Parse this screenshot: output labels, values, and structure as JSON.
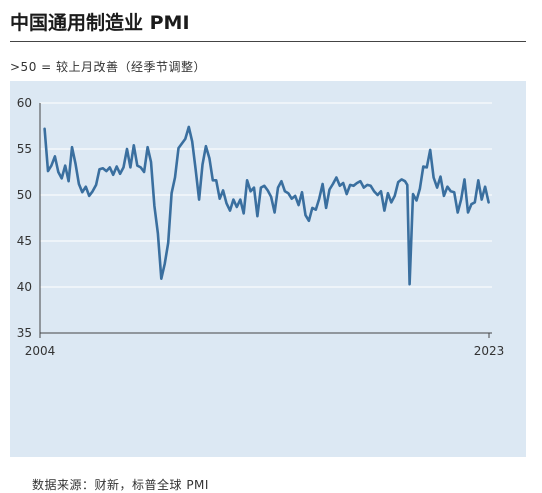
{
  "header": {
    "title": "中国通用制造业 PMI",
    "subtitle": ">50 = 较上月改善（经季节调整）"
  },
  "footer": {
    "source": "数据来源：财新，标普全球 PMI"
  },
  "colors": {
    "panel_bg": "#dce8f3",
    "line": "#3a6f9f",
    "grid": "#ffffff",
    "text": "#333333"
  },
  "chart_data": {
    "type": "line",
    "title": "中国通用制造业 PMI",
    "subtitle": ">50 = 较上月改善（经季节调整）",
    "xlabel": "",
    "ylabel": "",
    "ylim": [
      35,
      60
    ],
    "yticks": [
      35,
      40,
      45,
      50,
      55,
      60
    ],
    "xlim": [
      2004.0,
      2023.75
    ],
    "xtick_labels": [
      "2004",
      "2023"
    ],
    "grid": true,
    "legend": "none",
    "series": [
      {
        "x": [
          2004.2,
          2004.35,
          2004.5,
          2004.65,
          2004.8,
          2004.95,
          2005.1,
          2005.25,
          2005.4,
          2005.55,
          2005.7,
          2005.85,
          2006.0,
          2006.15,
          2006.3,
          2006.45,
          2006.6,
          2006.75,
          2006.9,
          2007.05,
          2007.2,
          2007.35,
          2007.5,
          2007.65,
          2007.8,
          2007.95,
          2008.1,
          2008.25,
          2008.4,
          2008.55,
          2008.7,
          2008.85,
          2009.0,
          2009.15,
          2009.3,
          2009.45,
          2009.6,
          2009.75,
          2009.9,
          2010.05,
          2010.2,
          2010.35,
          2010.5,
          2010.65,
          2010.8,
          2010.95,
          2011.1,
          2011.25,
          2011.4,
          2011.55,
          2011.7,
          2011.85,
          2012.0,
          2012.15,
          2012.3,
          2012.45,
          2012.6,
          2012.75,
          2012.9,
          2013.05,
          2013.2,
          2013.35,
          2013.5,
          2013.65,
          2013.8,
          2013.95,
          2014.1,
          2014.25,
          2014.4,
          2014.55,
          2014.7,
          2014.85,
          2015.0,
          2015.15,
          2015.3,
          2015.45,
          2015.6,
          2015.75,
          2015.9,
          2016.05,
          2016.2,
          2016.35,
          2016.5,
          2016.65,
          2016.8,
          2016.95,
          2017.1,
          2017.25,
          2017.4,
          2017.55,
          2017.7,
          2017.85,
          2018.0,
          2018.15,
          2018.3,
          2018.45,
          2018.6,
          2018.75,
          2018.9,
          2019.05,
          2019.2,
          2019.35,
          2019.5,
          2019.65,
          2019.8,
          2019.95,
          2020.05,
          2020.15,
          2020.3,
          2020.45,
          2020.6,
          2020.75,
          2020.9,
          2021.05,
          2021.2,
          2021.35,
          2021.5,
          2021.65,
          2021.8,
          2021.95,
          2022.1,
          2022.25,
          2022.4,
          2022.55,
          2022.7,
          2022.85,
          2023.0,
          2023.15,
          2023.3,
          2023.45,
          2023.6
        ],
        "values": [
          57.2,
          52.6,
          53.2,
          54.2,
          52.5,
          51.8,
          53.2,
          51.5,
          55.2,
          53.4,
          51.2,
          50.3,
          50.9,
          49.9,
          50.4,
          51.1,
          52.8,
          52.9,
          52.6,
          53.0,
          52.2,
          53.1,
          52.3,
          53.0,
          55.0,
          53.0,
          55.4,
          53.2,
          53.0,
          52.5,
          55.2,
          53.6,
          48.8,
          45.8,
          40.9,
          42.5,
          44.8,
          50.2,
          51.9,
          55.1,
          55.6,
          56.1,
          57.4,
          55.8,
          52.8,
          49.5,
          53.3,
          55.3,
          54.0,
          51.6,
          51.6,
          49.6,
          50.5,
          49.1,
          48.3,
          49.5,
          48.7,
          49.5,
          48.0,
          51.6,
          50.4,
          50.8,
          47.7,
          50.8,
          51.0,
          50.5,
          49.8,
          48.1,
          50.8,
          51.5,
          50.4,
          50.2,
          49.6,
          49.9,
          48.9,
          50.3,
          47.8,
          47.2,
          48.6,
          48.4,
          49.6,
          51.2,
          48.6,
          50.6,
          51.2,
          51.9,
          51.0,
          51.3,
          50.1,
          51.1,
          51.0,
          51.3,
          51.5,
          50.8,
          51.1,
          51.0,
          50.4,
          50.0,
          50.4,
          48.3,
          50.2,
          49.2,
          49.9,
          51.4,
          51.7,
          51.5,
          51.1,
          40.3,
          50.1,
          49.4,
          50.7,
          53.1,
          53.0,
          54.9,
          51.9,
          50.8,
          52.0,
          49.9,
          50.9,
          50.4,
          50.3,
          48.1,
          49.5,
          51.7,
          48.1,
          49.0,
          49.2,
          51.6,
          49.5,
          50.9,
          49.2
        ]
      }
    ]
  }
}
